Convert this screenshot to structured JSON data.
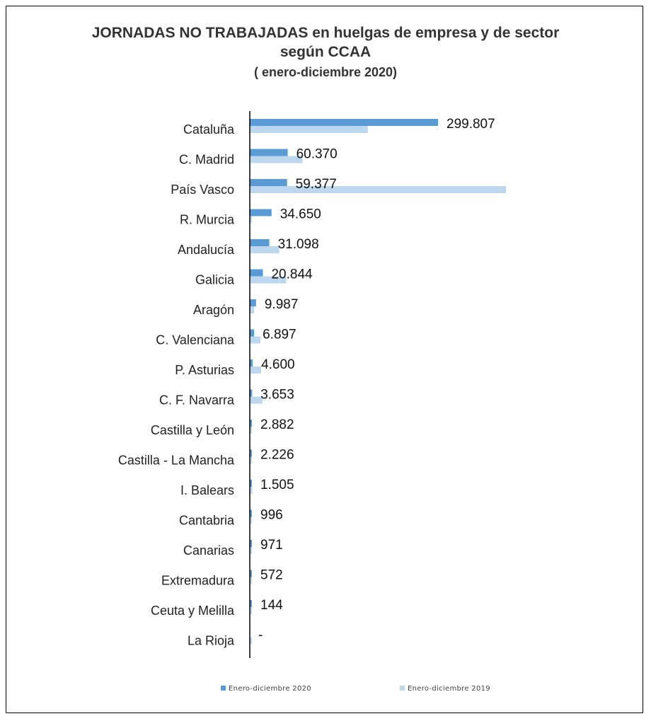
{
  "chart_data": {
    "type": "bar",
    "orientation": "horizontal",
    "title": "JORNADAS NO TRABAJADAS  en huelgas de empresa y de sector",
    "title_line2": "según CCAA",
    "subtitle": "( enero-diciembre  2020)",
    "categories": [
      "Cataluña",
      "C. Madrid",
      "País Vasco",
      "R. Murcia",
      "Andalucía",
      "Galicia",
      "Aragón",
      "C. Valenciana",
      "P. Asturias",
      "C. F. Navarra",
      "Castilla y León",
      "Castilla - La Mancha",
      "I. Balears",
      "Cantabria",
      "Canarias",
      "Extremadura",
      "Ceuta y Melilla",
      "La Rioja"
    ],
    "series": [
      {
        "name": "Enero-diciembre 2020",
        "color": "#5b9bd5",
        "values": [
          299807,
          60370,
          59377,
          34650,
          31098,
          20844,
          9987,
          6897,
          4600,
          3653,
          2882,
          2226,
          1505,
          996,
          971,
          572,
          144,
          0
        ],
        "labels": [
          "299.807",
          "60.370",
          "59.377",
          "34.650",
          "31.098",
          "20.844",
          "9.987",
          "6.897",
          "4.600",
          "3.653",
          "2.882",
          "2.226",
          "1.505",
          "996",
          "971",
          "572",
          "144",
          "-"
        ]
      },
      {
        "name": "Enero-diciembre 2019",
        "color": "#bdd7ee",
        "values": [
          188000,
          84000,
          408000,
          3000,
          47000,
          58000,
          7000,
          17000,
          18000,
          20000,
          3000,
          3000,
          4000,
          3000,
          3000,
          2000,
          2000,
          1500
        ]
      }
    ],
    "legend_position": "bottom",
    "grid": false
  }
}
